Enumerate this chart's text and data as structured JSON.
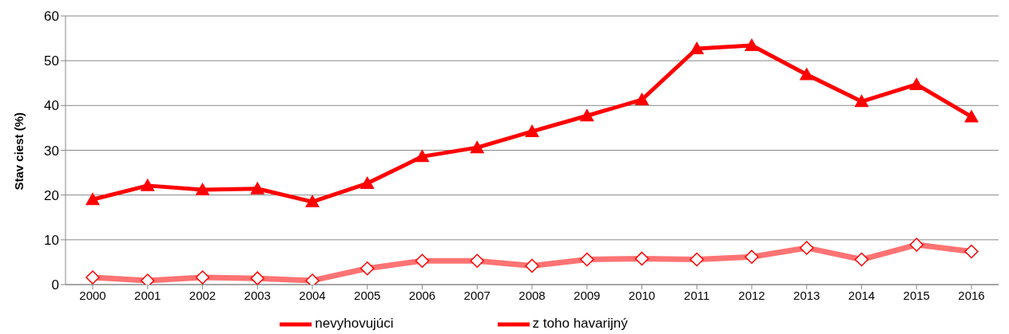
{
  "chart_data": {
    "type": "line",
    "ylabel": "Stav ciest (%)",
    "categories": [
      "2000",
      "2001",
      "2002",
      "2003",
      "2004",
      "2005",
      "2006",
      "2007",
      "2008",
      "2009",
      "2010",
      "2011",
      "2012",
      "2013",
      "2014",
      "2015",
      "2016"
    ],
    "series": [
      {
        "name": "nevyhovujúci",
        "color": "#ff0000",
        "marker": "triangle",
        "values": [
          19.0,
          22.1,
          21.2,
          21.4,
          18.5,
          22.6,
          28.6,
          30.6,
          34.2,
          37.7,
          41.3,
          52.7,
          53.4,
          46.9,
          40.9,
          44.7,
          37.5
        ]
      },
      {
        "name": "z toho havarijný",
        "color": "#ff0000",
        "marker": "diamond",
        "values": [
          1.6,
          0.9,
          1.6,
          1.4,
          0.9,
          3.6,
          5.3,
          5.3,
          4.2,
          5.6,
          5.8,
          5.6,
          6.2,
          8.2,
          5.6,
          8.9,
          7.4
        ]
      }
    ],
    "ylim": [
      0,
      60
    ],
    "yticks": [
      0,
      10,
      20,
      30,
      40,
      50,
      60
    ],
    "grid": "y",
    "legend": "bottom",
    "line_style": "solid"
  }
}
